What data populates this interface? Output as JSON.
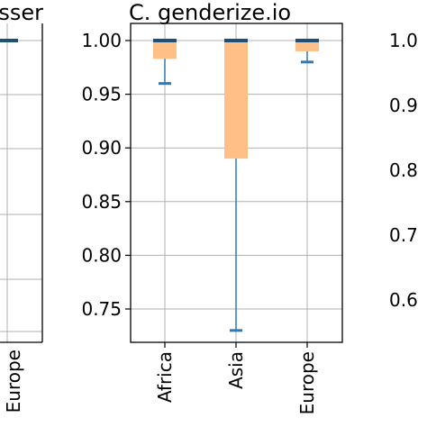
{
  "left_fragment": {
    "title_fragment": "sser",
    "xtick_fragment": "Europe"
  },
  "right_fragment": {
    "ytick_fragments": [
      "1.0",
      "0.9",
      "0.8",
      "0.7",
      "0.6"
    ]
  },
  "chart_data": {
    "type": "boxplot",
    "title": "C. genderize.io",
    "categories": [
      "Africa",
      "Asia",
      "Europe"
    ],
    "ylim": [
      0.72,
      1.005
    ],
    "yticks": [
      0.75,
      0.8,
      0.85,
      0.9,
      0.95,
      1.0
    ],
    "ytick_labels": [
      "0.75",
      "0.80",
      "0.85",
      "0.90",
      "0.95",
      "1.00"
    ],
    "grid": true,
    "series": [
      {
        "category": "Africa",
        "median": 1.0,
        "q1": 0.983,
        "q3": 1.0,
        "whisker_low": 0.96,
        "whisker_high": 1.0
      },
      {
        "category": "Asia",
        "median": 1.0,
        "q1": 0.89,
        "q3": 1.0,
        "whisker_low": 0.73,
        "whisker_high": 1.0
      },
      {
        "category": "Europe",
        "median": 1.0,
        "q1": 0.99,
        "q3": 1.0,
        "whisker_low": 0.98,
        "whisker_high": 1.0
      }
    ],
    "colors": {
      "box": "#ffbf86",
      "median": "#1f4e79",
      "whisker": "#2b7bb9",
      "grid": "#b0b0b0",
      "axis": "#000000"
    }
  }
}
